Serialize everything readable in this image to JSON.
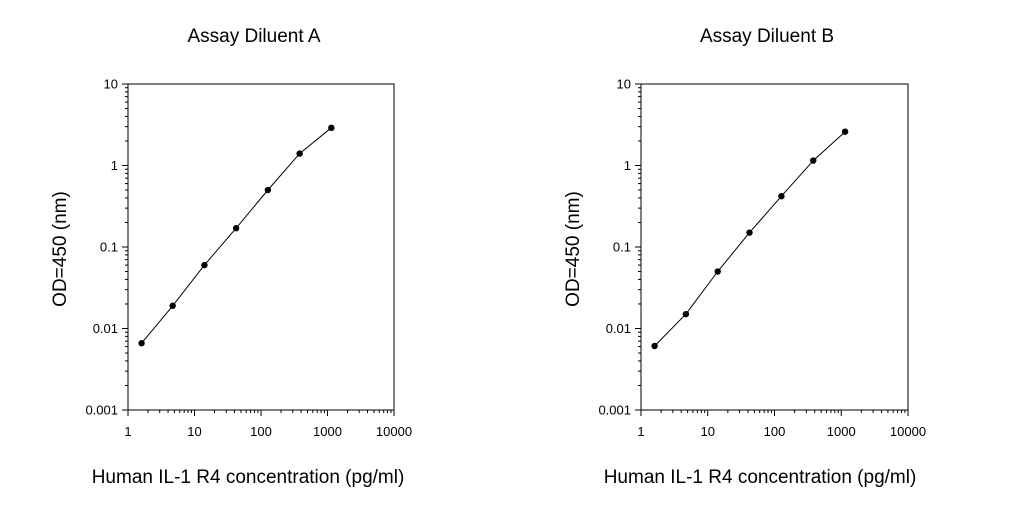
{
  "chart_data": [
    {
      "type": "scatter",
      "title": "Assay Diluent A",
      "xlabel": "Human IL-1 R4 concentration (pg/ml)",
      "ylabel": "OD=450 (nm)",
      "xscale": "log",
      "yscale": "log",
      "xlim": [
        1,
        10000
      ],
      "ylim": [
        0.001,
        10
      ],
      "xticks": [
        "1",
        "10",
        "100",
        "1000",
        "10000"
      ],
      "yticks": [
        "0.001",
        "0.01",
        "0.1",
        "1",
        "10"
      ],
      "grid": false,
      "connected": true,
      "series": [
        {
          "x": [
            1.6,
            4.7,
            14.1,
            42.2,
            127,
            381,
            1142
          ],
          "y": [
            0.0066,
            0.019,
            0.06,
            0.17,
            0.5,
            1.4,
            2.9
          ]
        }
      ]
    },
    {
      "type": "scatter",
      "title": "Assay Diluent B",
      "xlabel": "Human IL-1 R4 concentration (pg/ml)",
      "ylabel": "OD=450 (nm)",
      "xscale": "log",
      "yscale": "log",
      "xlim": [
        1,
        10000
      ],
      "ylim": [
        0.001,
        10
      ],
      "xticks": [
        "1",
        "10",
        "100",
        "1000",
        "10000"
      ],
      "yticks": [
        "0.001",
        "0.01",
        "0.1",
        "1",
        "10"
      ],
      "grid": false,
      "connected": true,
      "series": [
        {
          "x": [
            1.6,
            4.7,
            14.1,
            42.2,
            127,
            381,
            1142
          ],
          "y": [
            0.0061,
            0.015,
            0.05,
            0.15,
            0.42,
            1.15,
            2.6
          ]
        }
      ]
    }
  ]
}
